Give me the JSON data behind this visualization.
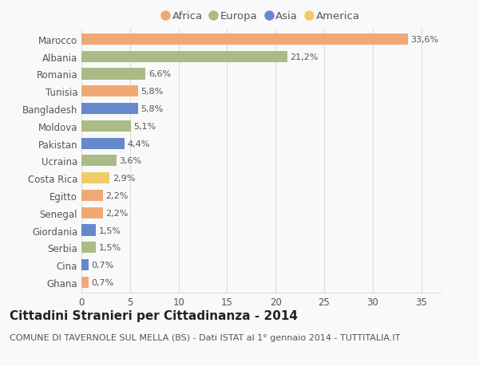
{
  "countries": [
    "Marocco",
    "Albania",
    "Romania",
    "Tunisia",
    "Bangladesh",
    "Moldova",
    "Pakistan",
    "Ucraina",
    "Costa Rica",
    "Egitto",
    "Senegal",
    "Giordania",
    "Serbia",
    "Cina",
    "Ghana"
  ],
  "values": [
    33.6,
    21.2,
    6.6,
    5.8,
    5.8,
    5.1,
    4.4,
    3.6,
    2.9,
    2.2,
    2.2,
    1.5,
    1.5,
    0.7,
    0.7
  ],
  "labels": [
    "33,6%",
    "21,2%",
    "6,6%",
    "5,8%",
    "5,8%",
    "5,1%",
    "4,4%",
    "3,6%",
    "2,9%",
    "2,2%",
    "2,2%",
    "1,5%",
    "1,5%",
    "0,7%",
    "0,7%"
  ],
  "continents": [
    "Africa",
    "Europa",
    "Europa",
    "Africa",
    "Asia",
    "Europa",
    "Asia",
    "Europa",
    "America",
    "Africa",
    "Africa",
    "Asia",
    "Europa",
    "Asia",
    "Africa"
  ],
  "colors": {
    "Africa": "#F0A875",
    "Europa": "#AABB88",
    "Asia": "#6688CC",
    "America": "#F0CC66"
  },
  "legend_order": [
    "Africa",
    "Europa",
    "Asia",
    "America"
  ],
  "title": "Cittadini Stranieri per Cittadinanza - 2014",
  "subtitle": "COMUNE DI TAVERNOLE SUL MELLA (BS) - Dati ISTAT al 1° gennaio 2014 - TUTTITALIA.IT",
  "xlim": [
    0,
    37
  ],
  "xticks": [
    0,
    5,
    10,
    15,
    20,
    25,
    30,
    35
  ],
  "background_color": "#f9f9f9",
  "grid_color": "#dddddd",
  "bar_height": 0.65,
  "title_fontsize": 11,
  "subtitle_fontsize": 8,
  "label_fontsize": 8,
  "tick_fontsize": 8.5,
  "legend_fontsize": 9.5
}
